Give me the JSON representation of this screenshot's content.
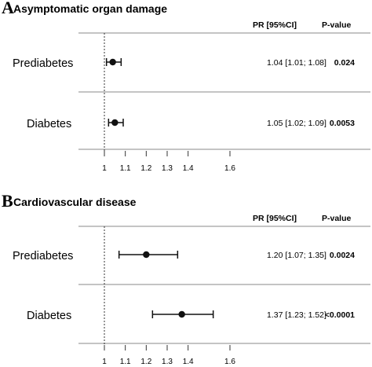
{
  "chart_data": [
    {
      "type": "forest",
      "panel_letter": "A",
      "title": "Asymptomatic organ damage",
      "column_headers": {
        "estimate": "PR [95%CI]",
        "pvalue": "P-value"
      },
      "reference_line": 1,
      "xlim": [
        0.95,
        1.7
      ],
      "x_ticks": [
        1,
        1.1,
        1.2,
        1.3,
        1.4,
        1.6
      ],
      "x_tick_labels": [
        "1",
        "1.1",
        "1.2",
        "1.3",
        "1.4",
        "1.6"
      ],
      "rows": [
        {
          "label": "Prediabetes",
          "pr": 1.04,
          "ci_low": 1.01,
          "ci_high": 1.08,
          "estimate_text": "1.04 [1.01; 1.08]",
          "p_value": "0.024"
        },
        {
          "label": "Diabetes",
          "pr": 1.05,
          "ci_low": 1.02,
          "ci_high": 1.09,
          "estimate_text": "1.05 [1.02; 1.09]",
          "p_value": "0.0053"
        }
      ]
    },
    {
      "type": "forest",
      "panel_letter": "B",
      "title": "Cardiovascular disease",
      "column_headers": {
        "estimate": "PR [95%CI]",
        "pvalue": "P-value"
      },
      "reference_line": 1,
      "xlim": [
        0.95,
        1.7
      ],
      "x_ticks": [
        1,
        1.1,
        1.2,
        1.3,
        1.4,
        1.6
      ],
      "x_tick_labels": [
        "1",
        "1.1",
        "1.2",
        "1.3",
        "1.4",
        "1.6"
      ],
      "rows": [
        {
          "label": "Prediabetes",
          "pr": 1.2,
          "ci_low": 1.07,
          "ci_high": 1.35,
          "estimate_text": "1.20 [1.07; 1.35]",
          "p_value": "0.0024"
        },
        {
          "label": "Diabetes",
          "pr": 1.37,
          "ci_low": 1.23,
          "ci_high": 1.52,
          "estimate_text": "1.37 [1.23; 1.52]",
          "p_value": "<0.0001"
        }
      ]
    }
  ]
}
